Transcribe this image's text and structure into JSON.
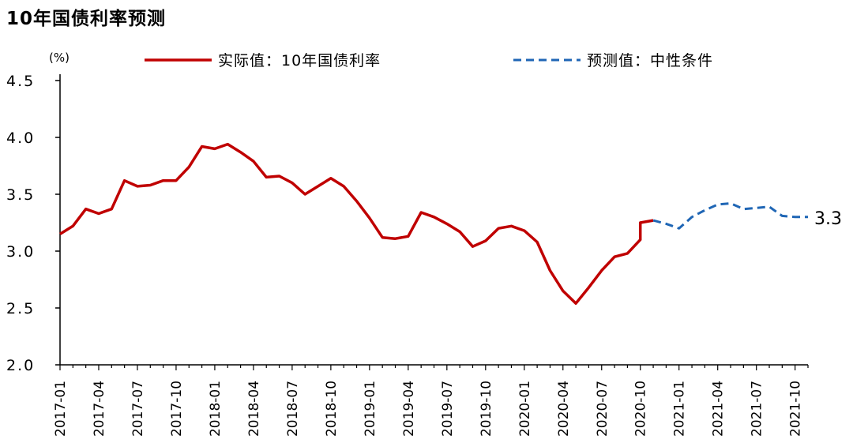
{
  "title": "10年国债利率预测",
  "chart_data": {
    "type": "line",
    "unit_label": "(%)",
    "ylim": [
      2.0,
      4.5
    ],
    "yticks": [
      "2.0",
      "2.5",
      "3.0",
      "3.5",
      "4.0",
      "4.5"
    ],
    "x_tick_labels": [
      "2017-01",
      "2017-04",
      "2017-07",
      "2017-10",
      "2018-01",
      "2018-04",
      "2018-07",
      "2018-10",
      "2019-01",
      "2019-04",
      "2019-07",
      "2019-10",
      "2020-01",
      "2020-04",
      "2020-07",
      "2020-10",
      "2021-01",
      "2021-04",
      "2021-07",
      "2021-10"
    ],
    "legend_position": "top",
    "series": [
      {
        "name": "实际值：10年国债利率",
        "style": "solid",
        "color": "#c00000",
        "points": [
          [
            "2017-01",
            3.15
          ],
          [
            "2017-02",
            3.22
          ],
          [
            "2017-03",
            3.37
          ],
          [
            "2017-04",
            3.33
          ],
          [
            "2017-05",
            3.37
          ],
          [
            "2017-06",
            3.62
          ],
          [
            "2017-07",
            3.57
          ],
          [
            "2017-08",
            3.58
          ],
          [
            "2017-09",
            3.62
          ],
          [
            "2017-10",
            3.62
          ],
          [
            "2017-11",
            3.74
          ],
          [
            "2017-12",
            3.92
          ],
          [
            "2018-01",
            3.9
          ],
          [
            "2018-02",
            3.94
          ],
          [
            "2018-03",
            3.87
          ],
          [
            "2018-04",
            3.79
          ],
          [
            "2018-05",
            3.65
          ],
          [
            "2018-06",
            3.66
          ],
          [
            "2018-07",
            3.6
          ],
          [
            "2018-08",
            3.5
          ],
          [
            "2018-09",
            3.57
          ],
          [
            "2018-10",
            3.64
          ],
          [
            "2018-11",
            3.57
          ],
          [
            "2018-12",
            3.44
          ],
          [
            "2019-01",
            3.29
          ],
          [
            "2019-02",
            3.12
          ],
          [
            "2019-03",
            3.11
          ],
          [
            "2019-04",
            3.13
          ],
          [
            "2019-05",
            3.34
          ],
          [
            "2019-06",
            3.3
          ],
          [
            "2019-07",
            3.24
          ],
          [
            "2019-08",
            3.17
          ],
          [
            "2019-09",
            3.04
          ],
          [
            "2019-10",
            3.09
          ],
          [
            "2019-11",
            3.2
          ],
          [
            "2019-12",
            3.22
          ],
          [
            "2020-01",
            3.18
          ],
          [
            "2020-02",
            3.08
          ],
          [
            "2020-03",
            2.83
          ],
          [
            "2020-04",
            2.65
          ],
          [
            "2020-05",
            2.54
          ],
          [
            "2020-06",
            2.68
          ],
          [
            "2020-07",
            2.83
          ],
          [
            "2020-08",
            2.95
          ],
          [
            "2020-09",
            2.98
          ],
          [
            "2020-10",
            3.1
          ],
          [
            "2020-10",
            3.25
          ],
          [
            "2020-11",
            3.27
          ]
        ]
      },
      {
        "name": "预测值：中性条件",
        "style": "dashed",
        "color": "#1f66b5",
        "points": [
          [
            "2020-11",
            3.27
          ],
          [
            "2020-12",
            3.24
          ],
          [
            "2021-01",
            3.2
          ],
          [
            "2021-02",
            3.3
          ],
          [
            "2021-03",
            3.36
          ],
          [
            "2021-04",
            3.41
          ],
          [
            "2021-05",
            3.42
          ],
          [
            "2021-06",
            3.37
          ],
          [
            "2021-07",
            3.38
          ],
          [
            "2021-08",
            3.39
          ],
          [
            "2021-09",
            3.31
          ],
          [
            "2021-10",
            3.3
          ],
          [
            "2021-11",
            3.3
          ]
        ]
      }
    ],
    "annotations": [
      {
        "text": "3.3",
        "x": "2021-11",
        "y": 3.3
      }
    ]
  }
}
